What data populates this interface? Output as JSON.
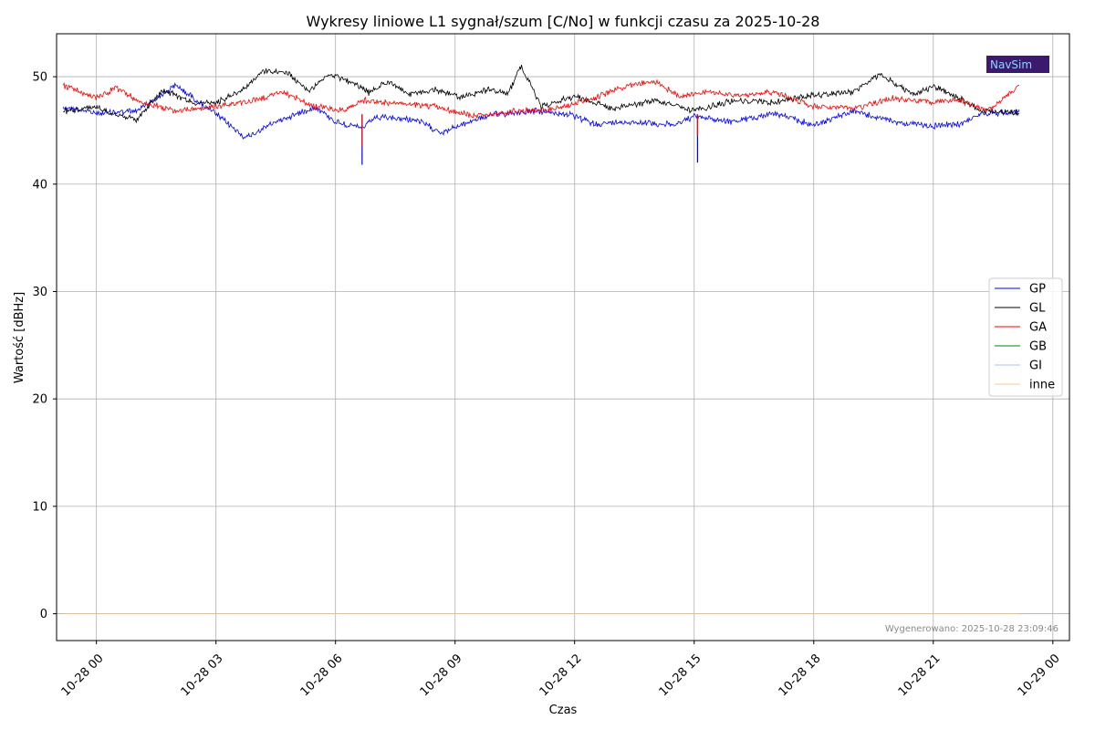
{
  "chart_data": {
    "type": "line",
    "title": "Wykresy liniowe L1 sygnał/szum [C/No] w funkcji czasu za 2025-10-28",
    "xlabel": "Czas",
    "ylabel": "Wartość [dBHz]",
    "x_range": [
      "2025-10-27 23:00",
      "2025-10-29 00:25"
    ],
    "ylim": [
      -2.5,
      54
    ],
    "y_ticks": [
      0,
      10,
      20,
      30,
      40,
      50
    ],
    "x_ticks": [
      {
        "t": "2025-10-28 00:00",
        "label": "10-28 00"
      },
      {
        "t": "2025-10-28 03:00",
        "label": "10-28 03"
      },
      {
        "t": "2025-10-28 06:00",
        "label": "10-28 06"
      },
      {
        "t": "2025-10-28 09:00",
        "label": "10-28 09"
      },
      {
        "t": "2025-10-28 12:00",
        "label": "10-28 12"
      },
      {
        "t": "2025-10-28 15:00",
        "label": "10-28 15"
      },
      {
        "t": "2025-10-28 18:00",
        "label": "10-28 18"
      },
      {
        "t": "2025-10-28 21:00",
        "label": "10-28 21"
      },
      {
        "t": "2025-10-29 00:00",
        "label": "10-29 00"
      }
    ],
    "grid": true,
    "legend_position": "center-right",
    "series": [
      {
        "name": "GP",
        "color": "#0000ff",
        "x": [
          "2025-10-27 23:10",
          "2025-10-28 00:00",
          "2025-10-28 01:00",
          "2025-10-28 02:00",
          "2025-10-28 03:00",
          "2025-10-28 03:45",
          "2025-10-28 04:30",
          "2025-10-28 05:30",
          "2025-10-28 06:00",
          "2025-10-28 06:40",
          "2025-10-28 07:00",
          "2025-10-28 08:00",
          "2025-10-28 08:40",
          "2025-10-28 09:30",
          "2025-10-28 10:00",
          "2025-10-28 11:00",
          "2025-10-28 11:50",
          "2025-10-28 12:30",
          "2025-10-28 13:30",
          "2025-10-28 14:30",
          "2025-10-28 15:00",
          "2025-10-28 16:00",
          "2025-10-28 17:00",
          "2025-10-28 18:00",
          "2025-10-28 19:00",
          "2025-10-28 20:00",
          "2025-10-28 21:00",
          "2025-10-28 21:40",
          "2025-10-28 22:10",
          "2025-10-28 23:10"
        ],
        "values": [
          47.2,
          46.6,
          46.8,
          49.2,
          46.5,
          44.3,
          45.8,
          47.2,
          45.8,
          45.2,
          46.2,
          46.0,
          44.8,
          46.0,
          46.5,
          46.8,
          46.5,
          45.6,
          45.8,
          45.5,
          46.3,
          45.8,
          46.6,
          45.5,
          46.8,
          45.8,
          45.4,
          45.6,
          46.5,
          46.8
        ]
      },
      {
        "name": "GL",
        "color": "#000000",
        "x": [
          "2025-10-27 23:10",
          "2025-10-28 00:00",
          "2025-10-28 00:30",
          "2025-10-28 01:00",
          "2025-10-28 01:40",
          "2025-10-28 02:30",
          "2025-10-28 03:00",
          "2025-10-28 03:40",
          "2025-10-28 04:10",
          "2025-10-28 04:50",
          "2025-10-28 05:20",
          "2025-10-28 05:50",
          "2025-10-28 06:20",
          "2025-10-28 06:50",
          "2025-10-28 07:20",
          "2025-10-28 07:50",
          "2025-10-28 08:30",
          "2025-10-28 09:10",
          "2025-10-28 09:50",
          "2025-10-28 10:20",
          "2025-10-28 10:40",
          "2025-10-28 11:10",
          "2025-10-28 12:00",
          "2025-10-28 13:00",
          "2025-10-28 14:00",
          "2025-10-28 15:00",
          "2025-10-28 16:00",
          "2025-10-28 17:00",
          "2025-10-28 18:00",
          "2025-10-28 19:00",
          "2025-10-28 19:40",
          "2025-10-28 20:30",
          "2025-10-28 21:00",
          "2025-10-28 21:30",
          "2025-10-28 22:10",
          "2025-10-28 23:10"
        ],
        "values": [
          46.8,
          47.2,
          46.5,
          46.0,
          48.8,
          47.5,
          47.6,
          48.8,
          50.5,
          50.3,
          48.6,
          50.3,
          49.6,
          48.5,
          49.6,
          48.3,
          48.8,
          48.1,
          48.8,
          48.5,
          51.0,
          47.2,
          48.2,
          47.0,
          47.8,
          46.8,
          47.8,
          47.6,
          48.3,
          48.6,
          50.2,
          48.3,
          49.1,
          48.3,
          46.9,
          46.6
        ]
      },
      {
        "name": "GA",
        "color": "#ff0000",
        "x": [
          "2025-10-27 23:10",
          "2025-10-28 00:00",
          "2025-10-28 00:30",
          "2025-10-28 01:00",
          "2025-10-28 02:00",
          "2025-10-28 03:00",
          "2025-10-28 04:00",
          "2025-10-28 04:40",
          "2025-10-28 05:30",
          "2025-10-28 06:10",
          "2025-10-28 06:40",
          "2025-10-28 07:30",
          "2025-10-28 08:30",
          "2025-10-28 09:30",
          "2025-10-28 10:30",
          "2025-10-28 11:30",
          "2025-10-28 12:30",
          "2025-10-28 13:20",
          "2025-10-28 14:00",
          "2025-10-28 14:40",
          "2025-10-28 15:20",
          "2025-10-28 16:00",
          "2025-10-28 17:00",
          "2025-10-28 18:00",
          "2025-10-28 19:00",
          "2025-10-28 20:00",
          "2025-10-28 21:00",
          "2025-10-28 21:40",
          "2025-10-28 22:20",
          "2025-10-28 23:10"
        ],
        "values": [
          49.2,
          48.0,
          49.0,
          47.8,
          46.8,
          47.2,
          47.8,
          48.6,
          47.2,
          46.8,
          47.8,
          47.5,
          47.2,
          46.3,
          46.8,
          47.0,
          48.0,
          49.2,
          49.5,
          48.2,
          48.6,
          48.2,
          48.6,
          47.2,
          47.0,
          48.0,
          47.6,
          47.8,
          46.8,
          49.2
        ]
      },
      {
        "name": "GB",
        "color": "#008000",
        "x": [
          "2025-10-27 23:10",
          "2025-10-28 23:10"
        ],
        "values": [
          0,
          0
        ]
      },
      {
        "name": "GI",
        "color": "#a8c8ee",
        "x": [
          "2025-10-27 23:10",
          "2025-10-28 23:10"
        ],
        "values": [
          0,
          0
        ]
      },
      {
        "name": "inne",
        "color": "#f5c89a",
        "x": [
          "2025-10-27 23:10",
          "2025-10-28 23:10"
        ],
        "values": [
          0,
          0
        ]
      }
    ],
    "spikes": [
      {
        "series": "GP",
        "x": "2025-10-28 06:40",
        "value": 41.8
      },
      {
        "series": "GA",
        "x": "2025-10-28 06:40",
        "value": 43.5
      },
      {
        "series": "GP",
        "x": "2025-10-28 15:05",
        "value": 42.0
      },
      {
        "series": "GA",
        "x": "2025-10-28 15:05",
        "value": 44.5
      }
    ]
  },
  "footer": "Wygenerowano: 2025-10-28 23:09:46",
  "logo": {
    "text": "NavSim"
  }
}
